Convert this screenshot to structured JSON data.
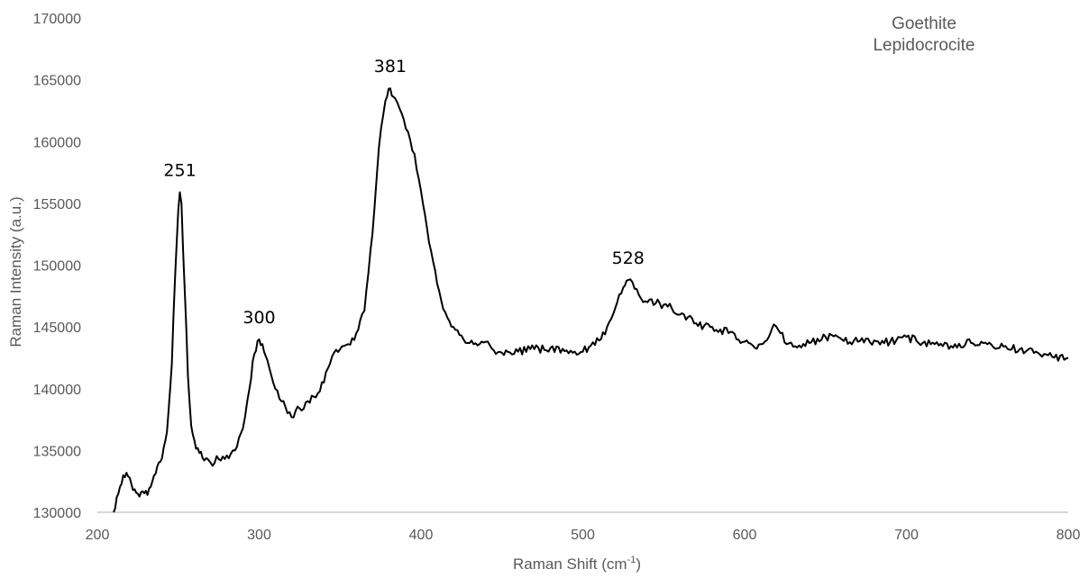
{
  "chart_data": {
    "type": "line",
    "title": "",
    "xlabel": "Raman Shift (cm",
    "xlabel_sup": "-1",
    "xlabel_end": ")",
    "ylabel": "Raman Intensity (a.u.)",
    "xlim": [
      200,
      800
    ],
    "ylim": [
      130000,
      170000
    ],
    "x_ticks": [
      "200",
      "300",
      "400",
      "500",
      "600",
      "700",
      "800"
    ],
    "y_ticks": [
      "130000",
      "135000",
      "140000",
      "145000",
      "150000",
      "155000",
      "160000",
      "165000",
      "170000"
    ],
    "grid": false,
    "legend_position": "top-right",
    "legend_entries": [
      "Goethite",
      "Lepidocrocite"
    ],
    "line_color": "#000000",
    "annotations": [
      {
        "label": "251",
        "x": 251,
        "y": 155900
      },
      {
        "label": "300",
        "x": 300,
        "y": 144000
      },
      {
        "label": "381",
        "x": 381,
        "y": 164300
      },
      {
        "label": "528",
        "x": 528,
        "y": 148800
      }
    ],
    "series": [
      {
        "x": [
          210,
          213,
          216,
          218,
          220,
          222,
          225,
          228,
          231,
          234,
          237,
          240,
          243,
          246,
          248,
          250,
          251,
          252,
          254,
          256,
          258,
          260,
          263,
          266,
          270,
          275,
          280,
          285,
          290,
          294,
          297,
          300,
          303,
          306,
          310,
          315,
          320,
          325,
          330,
          335,
          340,
          345,
          350,
          355,
          360,
          365,
          370,
          374,
          378,
          381,
          384,
          388,
          392,
          396,
          400,
          405,
          410,
          415,
          420,
          425,
          430,
          435,
          440,
          445,
          450,
          460,
          470,
          480,
          490,
          500,
          505,
          510,
          515,
          520,
          525,
          528,
          532,
          536,
          540,
          545,
          550,
          555,
          560,
          565,
          570,
          575,
          580,
          585,
          590,
          595,
          600,
          605,
          610,
          615,
          618,
          622,
          626,
          630,
          640,
          650,
          660,
          670,
          680,
          690,
          700,
          710,
          720,
          730,
          740,
          750,
          760,
          770,
          780,
          790,
          800
        ],
        "y": [
          130000,
          131500,
          133000,
          133200,
          132800,
          131800,
          131500,
          131700,
          131400,
          132500,
          133700,
          134400,
          136500,
          142000,
          149000,
          154500,
          155900,
          155000,
          148000,
          141000,
          137000,
          135800,
          134800,
          134200,
          134000,
          134300,
          134600,
          135000,
          136800,
          140000,
          142800,
          144000,
          143000,
          141800,
          140000,
          139000,
          137700,
          138400,
          139000,
          139300,
          140500,
          142600,
          143200,
          143600,
          144500,
          146300,
          152500,
          159500,
          163300,
          164300,
          163500,
          162300,
          160800,
          159000,
          156000,
          151800,
          148500,
          146200,
          145000,
          144300,
          143700,
          143500,
          143800,
          143100,
          142900,
          143000,
          143200,
          143300,
          143100,
          143000,
          143500,
          143900,
          145000,
          146500,
          148200,
          148800,
          148100,
          147300,
          147000,
          146900,
          146800,
          146500,
          146000,
          145800,
          145300,
          145100,
          145000,
          144800,
          144500,
          144000,
          143800,
          143500,
          143600,
          144200,
          145200,
          144500,
          143600,
          143400,
          143700,
          144200,
          144000,
          143800,
          143900,
          143800,
          144200,
          143700,
          143500,
          143600,
          143700,
          143600,
          143400,
          143200,
          143000,
          142600,
          142500
        ]
      }
    ]
  }
}
